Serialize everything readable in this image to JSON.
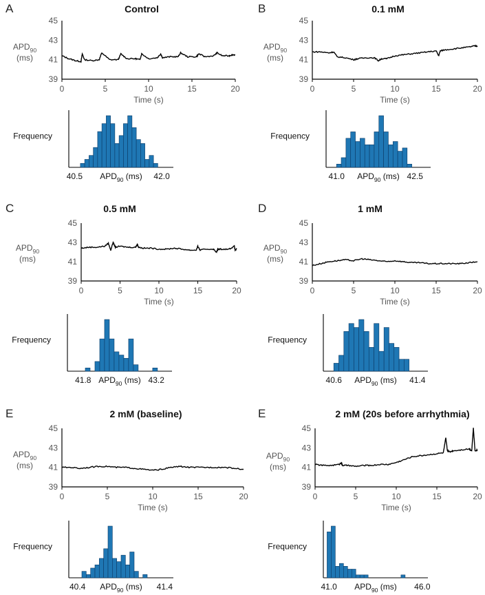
{
  "figure": {
    "y_label_main": "APD",
    "y_label_sub": "90",
    "y_label_unit": "(ms)",
    "x_label": "Time (s)",
    "hist_ylabel": "Frequency",
    "hist_xlabel_main": "APD",
    "hist_xlabel_sub": "90",
    "hist_xlabel_unit": " (ms)",
    "trace_color": "#000000",
    "axis_color": "#000000",
    "bar_color": "#1f77b4",
    "bar_edge_color": "#0b3a66"
  },
  "chart_data": [
    {
      "panel_letter": "A",
      "title": "Control",
      "type": "line",
      "xlim": [
        0,
        20
      ],
      "xticks": [
        0,
        5,
        10,
        15,
        20
      ],
      "ylim": [
        39,
        45
      ],
      "yticks": [
        39,
        41,
        43,
        45
      ],
      "series": [
        {
          "name": "APD90",
          "x": [
            0,
            0.8,
            1.6,
            2.2,
            2.35,
            2.6,
            3.5,
            4.3,
            4.6,
            5.5,
            6.5,
            6.8,
            7.5,
            8.5,
            9.0,
            9.2,
            10,
            11,
            11.4,
            11.6,
            12.5,
            13.4,
            13.7,
            14.5,
            15.5,
            15.8,
            16.5,
            17.5,
            17.9,
            18.5,
            19.3,
            19.6,
            20
          ],
          "y": [
            41.4,
            41.1,
            40.9,
            40.8,
            41.6,
            41.0,
            40.9,
            41.0,
            41.7,
            41.0,
            41.0,
            41.6,
            41.1,
            41.1,
            41.0,
            41.6,
            41.1,
            41.2,
            41.6,
            41.2,
            41.3,
            41.3,
            41.7,
            41.3,
            41.3,
            41.6,
            41.3,
            41.4,
            41.7,
            41.4,
            41.4,
            41.5,
            41.5
          ]
        }
      ],
      "hist": {
        "xlim": [
          40.4,
          42.2
        ],
        "xticks": [
          40.5,
          42.0
        ],
        "bin_start": 40.6,
        "bin_width": 0.074,
        "values": [
          1,
          2,
          3,
          5,
          9,
          11,
          13,
          11,
          6,
          8,
          11,
          13,
          10,
          7,
          6,
          2,
          3,
          1
        ]
      }
    },
    {
      "panel_letter": "B",
      "title": "0.1 mM",
      "type": "line",
      "xlim": [
        0,
        20
      ],
      "xticks": [
        0,
        5,
        10,
        15,
        20
      ],
      "ylim": [
        39,
        45
      ],
      "yticks": [
        39,
        41,
        43,
        45
      ],
      "series": [
        {
          "name": "APD90",
          "x": [
            0,
            1,
            2,
            2.6,
            3,
            4,
            5,
            5.5,
            6.5,
            7.5,
            8,
            8.4,
            9,
            10,
            11,
            12,
            13,
            14,
            15,
            15.3,
            15.5,
            16,
            17,
            18,
            19,
            19.6,
            20
          ],
          "y": [
            41.8,
            41.8,
            41.7,
            41.8,
            41.3,
            41.2,
            41.0,
            41.1,
            41.2,
            41.2,
            40.9,
            41.1,
            41.1,
            41.4,
            41.5,
            41.6,
            41.7,
            41.8,
            41.9,
            41.4,
            41.9,
            42.0,
            42.1,
            42.2,
            42.3,
            42.4,
            42.4
          ]
        }
      ],
      "hist": {
        "xlim": [
          40.8,
          42.8
        ],
        "xticks": [
          41.0,
          42.5
        ],
        "bin_start": 41.0,
        "bin_width": 0.09,
        "values": [
          1,
          3,
          9,
          11,
          8,
          9,
          7,
          7,
          11,
          16,
          11,
          7,
          8,
          5,
          6,
          1
        ]
      }
    },
    {
      "panel_letter": "C",
      "title": "0.5 mM",
      "type": "line",
      "xlim": [
        0,
        20
      ],
      "xticks": [
        0,
        5,
        10,
        15,
        20
      ],
      "ylim": [
        39,
        45
      ],
      "yticks": [
        39,
        41,
        43,
        45
      ],
      "series": [
        {
          "name": "APD90",
          "x": [
            0,
            1,
            2,
            3,
            3.5,
            3.8,
            4.1,
            4.4,
            5,
            6,
            7,
            7.2,
            7.4,
            8,
            9,
            10,
            11,
            12,
            13,
            14,
            14.8,
            15,
            15.3,
            16,
            17,
            17.4,
            17.6,
            18,
            19,
            19.7,
            19.8,
            20
          ],
          "y": [
            42.4,
            42.5,
            42.5,
            42.6,
            42.9,
            42.2,
            43.0,
            42.5,
            42.6,
            42.5,
            42.5,
            42.8,
            42.5,
            42.4,
            42.4,
            42.3,
            42.3,
            42.4,
            42.3,
            42.2,
            42.2,
            42.6,
            42.2,
            42.3,
            42.3,
            42.0,
            42.3,
            42.3,
            42.3,
            42.6,
            42.2,
            42.3
          ]
        }
      ],
      "hist": {
        "xlim": [
          41.5,
          43.5
        ],
        "xticks": [
          41.8,
          43.2
        ],
        "bin_start": 41.75,
        "bin_width": 0.092,
        "values": [
          0,
          1,
          0,
          3,
          10,
          16,
          10,
          6,
          5,
          4,
          10,
          2,
          0,
          0,
          0,
          1
        ]
      }
    },
    {
      "panel_letter": "D",
      "title": "1 mM",
      "type": "line",
      "xlim": [
        0,
        20
      ],
      "xticks": [
        0,
        5,
        10,
        15,
        20
      ],
      "ylim": [
        39,
        45
      ],
      "yticks": [
        39,
        41,
        43,
        45
      ],
      "series": [
        {
          "name": "APD90",
          "x": [
            0,
            1,
            2,
            3,
            4,
            5,
            6,
            7,
            8,
            9,
            10,
            11,
            12,
            13,
            14,
            15,
            16,
            17,
            18,
            19,
            20
          ],
          "y": [
            40.6,
            40.8,
            41.0,
            41.1,
            41.2,
            41.1,
            41.3,
            41.2,
            41.1,
            41.0,
            41.1,
            41.0,
            40.9,
            40.9,
            40.8,
            40.8,
            40.8,
            40.8,
            40.8,
            40.9,
            41.0
          ]
        }
      ],
      "hist": {
        "xlim": [
          40.5,
          41.5
        ],
        "xticks": [
          40.6,
          41.4
        ],
        "bin_start": 40.6,
        "bin_width": 0.048,
        "values": [
          2,
          4,
          10,
          12,
          11,
          13,
          10,
          6,
          12,
          5,
          11,
          7,
          6,
          3,
          3
        ]
      }
    },
    {
      "panel_letter": "E",
      "title": "2 mM (baseline)",
      "type": "line",
      "xlim": [
        0,
        20
      ],
      "xticks": [
        0,
        5,
        10,
        15,
        20
      ],
      "ylim": [
        39,
        45
      ],
      "yticks": [
        39,
        41,
        43,
        45
      ],
      "series": [
        {
          "name": "APD90",
          "x": [
            0,
            1,
            2,
            3,
            4,
            5,
            6,
            7,
            8,
            9,
            10,
            11,
            12,
            13,
            14,
            15,
            16,
            17,
            18,
            19,
            20
          ],
          "y": [
            41.0,
            41.0,
            40.9,
            41.0,
            41.1,
            41.1,
            41.0,
            41.0,
            40.9,
            40.8,
            40.7,
            40.8,
            41.0,
            41.1,
            41.0,
            41.0,
            41.0,
            41.0,
            41.0,
            40.9,
            40.8
          ]
        }
      ],
      "hist": {
        "xlim": [
          40.3,
          41.5
        ],
        "xticks": [
          40.4,
          41.4
        ],
        "bin_start": 40.45,
        "bin_width": 0.05,
        "values": [
          2,
          1,
          3,
          4,
          6,
          9,
          16,
          6,
          5,
          7,
          4,
          8,
          2,
          0,
          1
        ]
      }
    },
    {
      "panel_letter": "E",
      "title": "2 mM (20s before arrhythmia)",
      "type": "line",
      "xlim": [
        0,
        20
      ],
      "xticks": [
        0,
        5,
        10,
        15,
        20
      ],
      "ylim": [
        39,
        45
      ],
      "yticks": [
        39,
        41,
        43,
        45
      ],
      "series": [
        {
          "name": "APD90",
          "x": [
            0,
            1,
            2,
            3,
            3.2,
            3.4,
            4,
            5,
            6,
            7,
            8,
            9,
            10,
            11,
            12,
            13,
            14,
            15,
            15.8,
            16.1,
            16.3,
            16.6,
            17,
            18,
            19,
            19.3,
            19.5,
            19.7,
            20
          ],
          "y": [
            41.3,
            41.2,
            41.2,
            41.3,
            41.5,
            41.2,
            41.2,
            41.1,
            41.2,
            41.2,
            41.3,
            41.3,
            41.5,
            41.8,
            42.1,
            42.2,
            42.3,
            42.4,
            42.5,
            44.0,
            42.7,
            42.6,
            42.7,
            42.8,
            42.9,
            42.7,
            45.0,
            42.7,
            42.8
          ]
        }
      ],
      "hist": {
        "xlim": [
          40.7,
          46.3
        ],
        "xticks": [
          41.0,
          46.0
        ],
        "bin_start": 40.9,
        "bin_width": 0.22,
        "values": [
          16,
          18,
          4,
          5,
          4,
          3,
          3,
          1,
          1,
          1,
          0,
          0,
          0,
          0,
          0,
          0,
          0,
          0,
          1
        ]
      }
    }
  ]
}
